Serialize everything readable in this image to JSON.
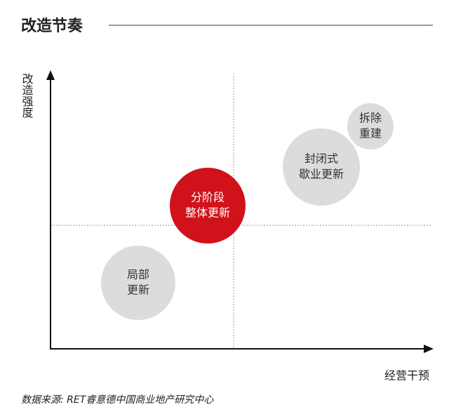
{
  "header": {
    "title": "改造节奏"
  },
  "y_axis": {
    "label": "改造强度"
  },
  "x_axis": {
    "label": "经营干预"
  },
  "bubbles": [
    {
      "lines": [
        "局部",
        "更新"
      ]
    },
    {
      "lines": [
        "分阶段",
        "整体更新"
      ]
    },
    {
      "lines": [
        "封闭式",
        "歇业更新"
      ]
    },
    {
      "lines": [
        "拆除",
        "重建"
      ]
    }
  ],
  "source": "数据来源: RET睿意德中国商业地产研究中心"
}
